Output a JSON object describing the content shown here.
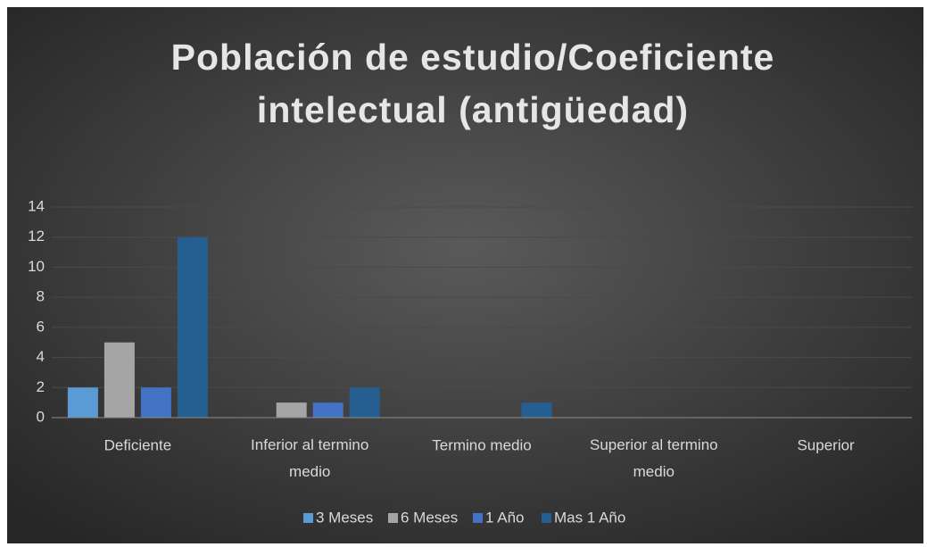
{
  "chart_data": {
    "type": "bar",
    "title": [
      "Población de estudio/Coeficiente",
      "intelectual (antigüedad)"
    ],
    "categories": [
      "Deficiente",
      "Inferior al termino medio",
      "Termino medio",
      "Superior al termino medio",
      "Superior"
    ],
    "series": [
      {
        "name": "3 Meses",
        "color": "#5b9bd5",
        "values": [
          2,
          0,
          0,
          0,
          0
        ]
      },
      {
        "name": "6 Meses",
        "color": "#a5a5a5",
        "values": [
          5,
          1,
          0,
          0,
          0
        ]
      },
      {
        "name": "1 Año",
        "color": "#4472c4",
        "values": [
          2,
          1,
          0,
          0,
          0
        ]
      },
      {
        "name": "Mas 1 Año",
        "color": "#255e91",
        "values": [
          12,
          2,
          1,
          0,
          0
        ]
      }
    ],
    "ylim": [
      0,
      14
    ],
    "yticks": [
      0,
      2,
      4,
      6,
      8,
      10,
      12,
      14
    ],
    "grid": true,
    "legend": "bottom"
  }
}
